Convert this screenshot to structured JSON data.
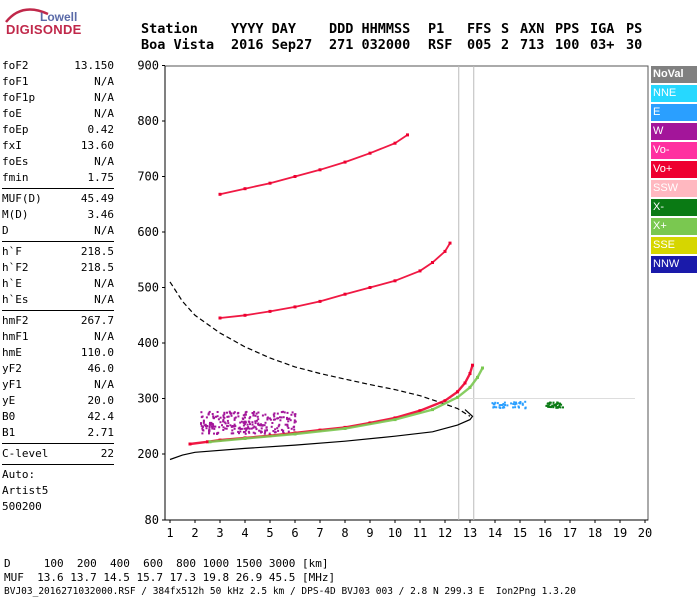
{
  "logo": {
    "line1": "Lowell",
    "line2": "DIGISONDE"
  },
  "header": {
    "labels": [
      "Station",
      "YYYY DAY",
      "DDD HHMMSS",
      "P1",
      "FFS",
      "S",
      "AXN",
      "PPS",
      "IGA",
      "PS"
    ],
    "values": [
      "Boa Vista",
      "2016 Sep27",
      "271 032000",
      "RSF",
      "005",
      "2",
      "713",
      "100",
      "03+",
      "30"
    ]
  },
  "params": {
    "group1": [
      {
        "name": "foF2",
        "value": "13.150"
      },
      {
        "name": "foF1",
        "value": "N/A"
      },
      {
        "name": "foF1p",
        "value": "N/A"
      },
      {
        "name": "foE",
        "value": "N/A"
      },
      {
        "name": "foEp",
        "value": "0.42"
      },
      {
        "name": "fxI",
        "value": "13.60"
      },
      {
        "name": "foEs",
        "value": "N/A"
      },
      {
        "name": "fmin",
        "value": "1.75"
      }
    ],
    "group2": [
      {
        "name": "MUF(D)",
        "value": "45.49"
      },
      {
        "name": "M(D)",
        "value": "3.46"
      },
      {
        "name": "D",
        "value": "N/A"
      }
    ],
    "group3": [
      {
        "name": "h`F",
        "value": "218.5"
      },
      {
        "name": "h`F2",
        "value": "218.5"
      },
      {
        "name": "h`E",
        "value": "N/A"
      },
      {
        "name": "h`Es",
        "value": "N/A"
      }
    ],
    "group4": [
      {
        "name": "hmF2",
        "value": "267.7"
      },
      {
        "name": "hmF1",
        "value": "N/A"
      },
      {
        "name": "hmE",
        "value": "110.0"
      },
      {
        "name": "yF2",
        "value": "46.0"
      },
      {
        "name": "yF1",
        "value": "N/A"
      },
      {
        "name": "yE",
        "value": "20.0"
      },
      {
        "name": "B0",
        "value": "42.4"
      },
      {
        "name": "B1",
        "value": "2.71"
      }
    ],
    "clevel": {
      "name": "C-level",
      "value": "22"
    },
    "auto": [
      "Auto:",
      "Artist5",
      "500200"
    ]
  },
  "legend": [
    {
      "label": "NoVal",
      "color": "#808080"
    },
    {
      "label": "NNE",
      "color": "#26d8ff"
    },
    {
      "label": "E",
      "color": "#2a9fff"
    },
    {
      "label": "W",
      "color": "#a3159a"
    },
    {
      "label": "Vo-",
      "color": "#ff30a0"
    },
    {
      "label": "Vo+",
      "color": "#ee0030"
    },
    {
      "label": "SSW",
      "color": "#ffb8c0"
    },
    {
      "label": "X-",
      "color": "#0a7a14"
    },
    {
      "label": "X+",
      "color": "#7ac850"
    },
    {
      "label": "SSE",
      "color": "#d6d600"
    },
    {
      "label": "NNW",
      "color": "#1a1aaa"
    }
  ],
  "footer": {
    "line1": "D     100  200  400  600  800 1000 1500 3000 [km]",
    "line2": "MUF  13.6 13.7 14.5 15.7 17.3 19.8 26.9 45.5 [MHz]",
    "line3": "BVJ03_2016271032000.RSF / 384fx512h 50 kHz 2.5 km / DPS-4D BVJ03 003 / 2.8 N 299.3 E  Ion2Png 1.3.20"
  },
  "chart_data": {
    "type": "scatter",
    "xlim": [
      1,
      20
    ],
    "ylim": [
      80,
      900
    ],
    "x_ticks": [
      1,
      2,
      3,
      4,
      5,
      6,
      7,
      8,
      9,
      10,
      11,
      12,
      13,
      14,
      15,
      16,
      17,
      18,
      19,
      20
    ],
    "y_ticks": [
      80,
      200,
      300,
      400,
      500,
      600,
      700,
      800,
      900
    ],
    "grid": false,
    "series": [
      {
        "name": "Vo+",
        "x": [
          1.8,
          2.5,
          3.0,
          4.0,
          5.0,
          6.0,
          7.0,
          8.0,
          9.0,
          10.0,
          11.0,
          12.0,
          12.5,
          12.8,
          13.0,
          13.1
        ],
        "y": [
          218,
          222,
          225,
          229,
          233,
          238,
          243,
          248,
          256,
          265,
          278,
          296,
          312,
          328,
          345,
          360
        ]
      },
      {
        "name": "X+",
        "x": [
          2.6,
          4.0,
          6.0,
          8.0,
          10.0,
          11.5,
          12.5,
          13.0,
          13.3,
          13.5
        ],
        "y": [
          222,
          228,
          236,
          246,
          262,
          280,
          302,
          320,
          338,
          355
        ]
      },
      {
        "name": "Vo+",
        "x": [
          3.0,
          4.0,
          5.0,
          6.0,
          7.0,
          8.0,
          9.0,
          10.0,
          11.0,
          11.5,
          12.0,
          12.2
        ],
        "y": [
          445,
          450,
          457,
          465,
          475,
          488,
          500,
          512,
          530,
          545,
          565,
          580
        ]
      },
      {
        "name": "Vo+",
        "x": [
          3.0,
          4.0,
          5.0,
          6.0,
          7.0,
          8.0,
          9.0,
          10.0,
          10.5
        ],
        "y": [
          668,
          678,
          688,
          700,
          712,
          726,
          742,
          760,
          775
        ]
      }
    ],
    "profile_dashed": {
      "x": [
        1.0,
        1.5,
        2.0,
        3.0,
        4.0,
        5.0,
        6.0,
        7.0,
        8.0,
        9.0,
        10.0,
        11.0,
        11.6,
        12.0,
        12.5,
        13.0
      ],
      "y": [
        510,
        475,
        450,
        418,
        393,
        373,
        357,
        345,
        335,
        325,
        316,
        305,
        296,
        290,
        282,
        268
      ]
    },
    "profile_solid": {
      "x": [
        1.0,
        1.5,
        2.0,
        4.0,
        6.0,
        8.0,
        10.0,
        11.5,
        12.5,
        13.0,
        13.1,
        12.8
      ],
      "y": [
        190,
        198,
        203,
        210,
        216,
        223,
        232,
        240,
        252,
        262,
        268,
        280
      ]
    },
    "clusters": [
      {
        "name": "W",
        "x": [
          2.2,
          6.1
        ],
        "y": [
          238,
          278
        ]
      },
      {
        "name": "E",
        "x": [
          13.8,
          15.2
        ],
        "y": [
          284,
          296
        ]
      },
      {
        "name": "X-",
        "x": [
          16.0,
          16.7
        ],
        "y": [
          285,
          295
        ]
      }
    ]
  }
}
